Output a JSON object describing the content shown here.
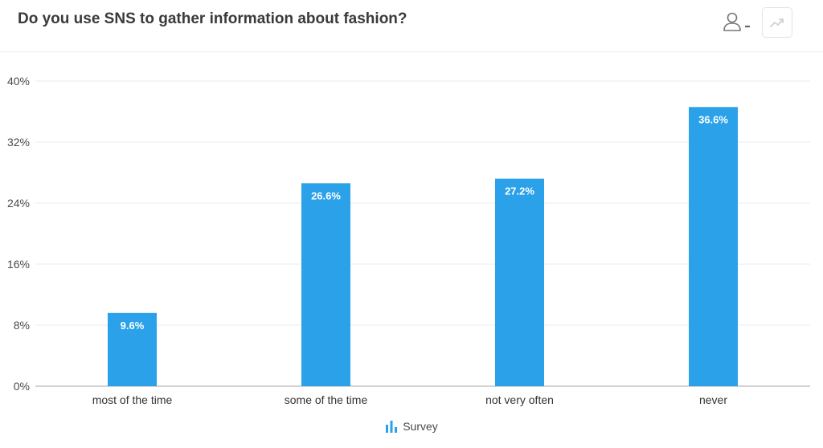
{
  "header": {
    "title": "Do you use SNS to gather information about fashion?",
    "user_icon": "user-icon",
    "trend_icon": "trend-icon"
  },
  "colors": {
    "bar": "#2aa1e8",
    "grid": "#ebebeb",
    "axis": "#b9b9b9"
  },
  "legend": {
    "label": "Survey",
    "icon": "bar-chart-icon"
  },
  "chart_data": {
    "type": "bar",
    "categories": [
      "most of the time",
      "some of the time",
      "not very often",
      "never"
    ],
    "series": [
      {
        "name": "Survey",
        "values": [
          9.6,
          26.6,
          27.2,
          36.6
        ],
        "labels": [
          "9.6%",
          "26.6%",
          "27.2%",
          "36.6%"
        ]
      }
    ],
    "yticks": [
      0,
      8,
      16,
      24,
      32,
      40
    ],
    "ytick_labels": [
      "0%",
      "8%",
      "16%",
      "24%",
      "32%",
      "40%"
    ],
    "ylim": [
      0,
      40
    ],
    "grid": true,
    "legend_position": "bottom-center"
  }
}
